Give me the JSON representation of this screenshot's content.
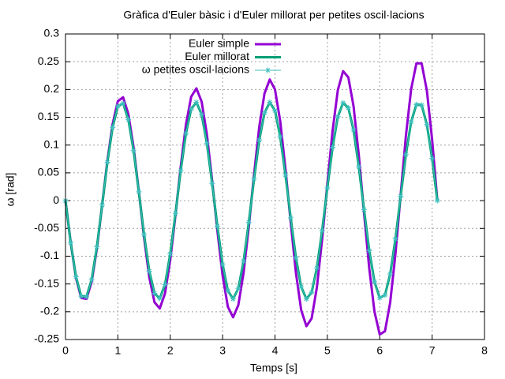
{
  "chart_data": {
    "type": "line",
    "title": "Gràfica d'Euler bàsic i d'Euler millorat per petites oscil·lacions",
    "x_label": "Temps [s]",
    "y_label": "ω [rad]",
    "xlim": [
      0,
      8
    ],
    "xticks": [
      0,
      1,
      2,
      3,
      4,
      5,
      6,
      7,
      8
    ],
    "ylim": [
      -0.25,
      0.3
    ],
    "yticks": [
      -0.25,
      -0.2,
      -0.15,
      -0.1,
      -0.05,
      0,
      0.05,
      0.1,
      0.15,
      0.2,
      0.25,
      0.3
    ],
    "grid": true,
    "legend": "top",
    "x": [
      0,
      0.1,
      0.2,
      0.3,
      0.4,
      0.5,
      0.6,
      0.7,
      0.8,
      0.9,
      1,
      1.1,
      1.2,
      1.3,
      1.4,
      1.5,
      1.6,
      1.7,
      1.8,
      1.9,
      2,
      2.1,
      2.2,
      2.3,
      2.4,
      2.5,
      2.6,
      2.7,
      2.8,
      2.9,
      3,
      3.1,
      3.2,
      3.3,
      3.4,
      3.5,
      3.6,
      3.7,
      3.8,
      3.9,
      4,
      4.1,
      4.2,
      4.3,
      4.4,
      4.5,
      4.6,
      4.7,
      4.8,
      4.9,
      5,
      5.1,
      5.2,
      5.3,
      5.4,
      5.5,
      5.6,
      5.7,
      5.8,
      5.9,
      6,
      6.1,
      6.2,
      6.3,
      6.4,
      6.5,
      6.6,
      6.7,
      6.8,
      6.9,
      7,
      7.1
    ],
    "series": [
      {
        "name": "Euler simple",
        "color": "#9400d3",
        "values": [
          0,
          -0.076,
          -0.139,
          -0.175,
          -0.177,
          -0.146,
          -0.086,
          -0.008,
          0.072,
          0.138,
          0.179,
          0.186,
          0.156,
          0.096,
          0.017,
          -0.066,
          -0.138,
          -0.183,
          -0.194,
          -0.167,
          -0.107,
          -0.026,
          0.061,
          0.137,
          0.187,
          0.202,
          0.178,
          0.119,
          0.036,
          -0.054,
          -0.135,
          -0.191,
          -0.21,
          -0.188,
          -0.13,
          -0.047,
          0.047,
          0.133,
          0.193,
          0.218,
          0.2,
          0.143,
          0.057,
          -0.039,
          -0.13,
          -0.197,
          -0.226,
          -0.212,
          -0.156,
          -0.07,
          0.03,
          0.126,
          0.199,
          0.233,
          0.222,
          0.17,
          0.082,
          -0.022,
          -0.122,
          -0.2,
          -0.241,
          -0.235,
          -0.183,
          -0.096,
          0.011,
          0.117,
          0.201,
          0.247,
          0.247,
          0.198,
          0.11,
          0
        ]
      },
      {
        "name": "Euler millorat",
        "color": "#009e73",
        "values": [
          0,
          -0.076,
          -0.137,
          -0.172,
          -0.173,
          -0.142,
          -0.083,
          -0.008,
          0.069,
          0.132,
          0.17,
          0.175,
          0.146,
          0.09,
          0.016,
          -0.061,
          -0.127,
          -0.167,
          -0.176,
          -0.151,
          -0.096,
          -0.023,
          0.054,
          0.121,
          0.165,
          0.177,
          0.155,
          0.103,
          0.031,
          -0.046,
          -0.115,
          -0.162,
          -0.177,
          -0.158,
          -0.109,
          -0.039,
          0.039,
          0.109,
          0.158,
          0.177,
          0.162,
          0.115,
          0.046,
          -0.031,
          -0.103,
          -0.155,
          -0.177,
          -0.165,
          -0.121,
          -0.054,
          0.023,
          0.096,
          0.151,
          0.176,
          0.167,
          0.127,
          0.061,
          -0.016,
          -0.09,
          -0.146,
          -0.175,
          -0.17,
          -0.132,
          -0.069,
          0.008,
          0.083,
          0.142,
          0.173,
          0.172,
          0.137,
          0.076,
          0
        ]
      },
      {
        "name": "ω petites oscil·lacions",
        "color": "#3fbfbf",
        "marker": "star",
        "values": [
          0,
          -0.076,
          -0.137,
          -0.172,
          -0.173,
          -0.142,
          -0.083,
          -0.008,
          0.069,
          0.132,
          0.17,
          0.175,
          0.146,
          0.09,
          0.016,
          -0.061,
          -0.127,
          -0.167,
          -0.176,
          -0.151,
          -0.096,
          -0.023,
          0.054,
          0.121,
          0.165,
          0.177,
          0.155,
          0.103,
          0.031,
          -0.046,
          -0.115,
          -0.162,
          -0.177,
          -0.158,
          -0.109,
          -0.039,
          0.039,
          0.109,
          0.158,
          0.177,
          0.162,
          0.115,
          0.046,
          -0.031,
          -0.103,
          -0.155,
          -0.177,
          -0.165,
          -0.121,
          -0.054,
          0.023,
          0.096,
          0.151,
          0.176,
          0.167,
          0.127,
          0.061,
          -0.016,
          -0.09,
          -0.146,
          -0.175,
          -0.17,
          -0.132,
          -0.069,
          0.008,
          0.083,
          0.142,
          0.173,
          0.172,
          0.137,
          0.076,
          0
        ]
      }
    ]
  }
}
